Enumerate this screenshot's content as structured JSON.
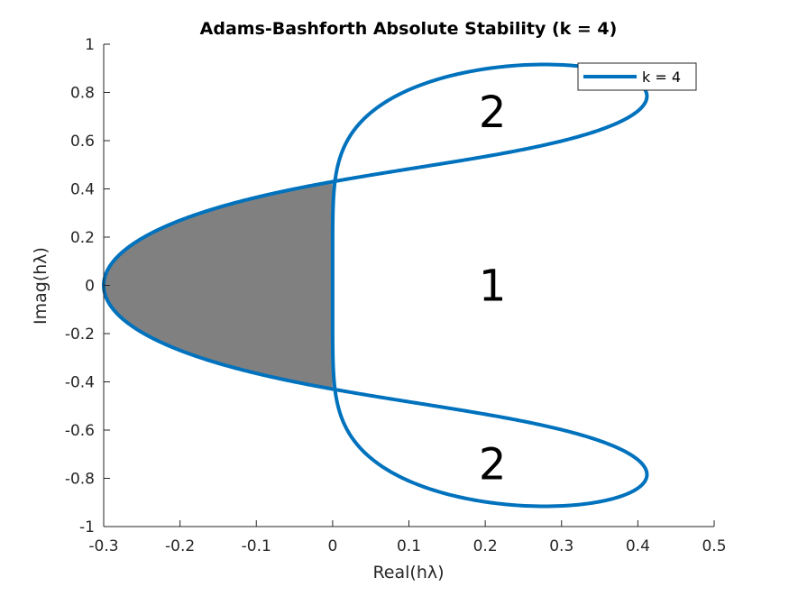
{
  "chart_data": {
    "type": "line",
    "title": "Adams-Bashforth Absolute Stability (k = 4)",
    "xlabel": "Real(hλ)",
    "ylabel": "Imag(hλ)",
    "xlim": [
      -0.3,
      0.5
    ],
    "ylim": [
      -1,
      1
    ],
    "xticks": [
      -0.3,
      -0.2,
      -0.1,
      0,
      0.1,
      0.2,
      0.3,
      0.4,
      0.5
    ],
    "xtick_labels": [
      "-0.3",
      "-0.2",
      "-0.1",
      "0",
      "0.1",
      "0.2",
      "0.3",
      "0.4",
      "0.5"
    ],
    "yticks": [
      -1,
      -0.8,
      -0.6,
      -0.4,
      -0.2,
      0,
      0.2,
      0.4,
      0.6,
      0.8,
      1
    ],
    "ytick_labels": [
      "-1",
      "-0.8",
      "-0.6",
      "-0.4",
      "-0.2",
      "0",
      "0.2",
      "0.4",
      "0.6",
      "0.8",
      "1"
    ],
    "grid": false,
    "legend": {
      "position": "top-right",
      "entries": [
        "k = 4"
      ]
    },
    "series": [
      {
        "name": "k = 4",
        "color": "#0072bd",
        "note_shape": "boundary locus of 4-step Adams-Bashforth stability region"
      }
    ],
    "shaded_region": {
      "color": "#808080"
    },
    "annotations": [
      {
        "text": "2",
        "x": 0.2,
        "y": 0.72
      },
      {
        "text": "1",
        "x": 0.2,
        "y": 0.0
      },
      {
        "text": "2",
        "x": 0.2,
        "y": -0.74
      }
    ]
  }
}
